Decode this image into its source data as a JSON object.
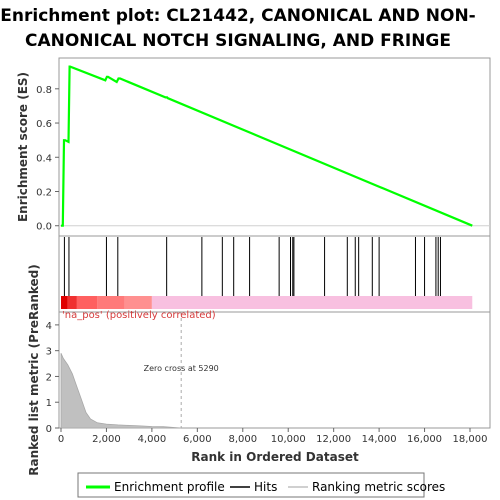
{
  "chart_data": {
    "type": "line",
    "title_lines": [
      "Enrichment plot: CL21442, CANONICAL AND NON-",
      "CANONICAL NOTCH SIGNALING, AND FRINGE"
    ],
    "xlabel": "Rank in Ordered Dataset",
    "ylabel_top": "Enrichment score (ES)",
    "ylabel_bottom": "Ranked list metric (PreRanked)",
    "xlim": [
      0,
      19000
    ],
    "x_ticks": [
      0,
      2000,
      4000,
      6000,
      8000,
      10000,
      12000,
      14000,
      16000,
      18000
    ],
    "x_tick_labels": [
      "0",
      "2,000",
      "4,000",
      "6,000",
      "8,000",
      "10,000",
      "12,000",
      "14,000",
      "16,000",
      "18,000"
    ],
    "es_ylim": [
      -0.06,
      0.98
    ],
    "es_ticks": [
      0.0,
      0.2,
      0.4,
      0.6,
      0.8
    ],
    "es_tick_labels": [
      "0.0",
      "0.2",
      "0.4",
      "0.6",
      "0.8"
    ],
    "metric_ylim": [
      0,
      4.5
    ],
    "metric_ticks": [
      0,
      1,
      2,
      3,
      4
    ],
    "metric_tick_labels": [
      "0",
      "1",
      "2",
      "3",
      "4"
    ],
    "enrichment_profile": {
      "name": "Enrichment profile",
      "color": "#00ff00",
      "x": [
        0,
        80,
        130,
        180,
        330,
        380,
        400,
        1950,
        2020,
        2070,
        2450,
        2530,
        2600,
        4600,
        4670,
        4700,
        18100
      ],
      "y": [
        0.0,
        0.0,
        0.5,
        0.5,
        0.49,
        0.93,
        0.93,
        0.85,
        0.87,
        0.87,
        0.84,
        0.86,
        0.86,
        0.75,
        0.75,
        0.745,
        0.0
      ]
    },
    "hits": {
      "name": "Hits",
      "color": "#000000",
      "positions": [
        150,
        350,
        2000,
        2500,
        4650,
        6200,
        7100,
        7600,
        8300,
        9600,
        10100,
        10200,
        10250,
        11600,
        12600,
        12950,
        13100,
        13700,
        14000,
        15600,
        16000,
        16500,
        16600,
        16700
      ]
    },
    "ranking_metric": {
      "name": "Ranking metric scores",
      "color": "#c0c0c0",
      "x": [
        0,
        100,
        300,
        500,
        700,
        900,
        1100,
        1300,
        1600,
        2000,
        2500,
        3000,
        3500,
        4000,
        4500,
        5000,
        5290
      ],
      "y": [
        2.9,
        2.7,
        2.45,
        2.1,
        1.6,
        1.1,
        0.6,
        0.35,
        0.2,
        0.15,
        0.12,
        0.1,
        0.08,
        0.06,
        0.05,
        0.02,
        0.0
      ]
    },
    "zero_cross": {
      "rank": 5290,
      "label": "Zero cross at 5290"
    },
    "positive_label": "'na_pos' (positively correlated)",
    "legend": {
      "placement": "bottom",
      "entries": [
        "Enrichment profile",
        "Hits",
        "Ranking metric scores"
      ]
    }
  }
}
